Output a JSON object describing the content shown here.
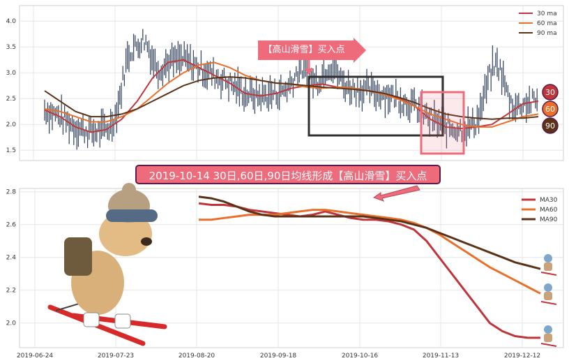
{
  "banner_text": "2019-10-14 30日,60日,90日均线形成【高山滑雪】买入点",
  "callout_text": "【高山滑雪】买入点",
  "badges": [
    "30",
    "60",
    "90"
  ],
  "colors": {
    "ma30": "#c0353a",
    "ma60": "#e8702a",
    "ma90": "#5a3218",
    "candle": "#3a4a63",
    "accent_pink": "#ee6b7c",
    "box_dark": "#2f2f2f"
  },
  "chart_data": [
    {
      "type": "line",
      "title": "",
      "y_ticks": [
        "1.5",
        "2.0",
        "2.5",
        "3.0",
        "3.5",
        "4.0"
      ],
      "ylim": [
        1.3,
        4.3
      ],
      "grid": true,
      "legend_position": "top-right",
      "series": [
        {
          "name": "30 ma",
          "color": "#c0353a",
          "values": [
            2.28,
            2.15,
            1.95,
            1.85,
            1.9,
            2.1,
            2.45,
            2.9,
            3.2,
            3.25,
            3.1,
            2.95,
            2.8,
            2.6,
            2.55,
            2.6,
            2.7,
            2.75,
            2.78,
            2.72,
            2.7,
            2.65,
            2.6,
            2.5,
            2.35,
            2.1,
            1.95,
            1.92,
            1.95,
            2.0,
            2.2,
            2.4,
            2.45
          ]
        },
        {
          "name": "60 ma",
          "color": "#e8702a",
          "values": [
            2.3,
            2.25,
            2.15,
            2.05,
            2.05,
            2.15,
            2.3,
            2.55,
            2.8,
            3.0,
            3.15,
            3.2,
            3.1,
            2.95,
            2.85,
            2.8,
            2.78,
            2.72,
            2.7,
            2.72,
            2.7,
            2.65,
            2.58,
            2.48,
            2.35,
            2.2,
            2.1,
            2.0,
            1.95,
            1.95,
            2.05,
            2.15,
            2.2
          ]
        },
        {
          "name": "90 ma",
          "color": "#5a3218",
          "values": [
            2.65,
            2.45,
            2.25,
            2.15,
            2.15,
            2.2,
            2.3,
            2.45,
            2.6,
            2.75,
            2.85,
            2.9,
            2.92,
            2.9,
            2.85,
            2.8,
            2.78,
            2.75,
            2.72,
            2.7,
            2.68,
            2.65,
            2.6,
            2.52,
            2.42,
            2.3,
            2.2,
            2.15,
            2.12,
            2.1,
            2.12,
            2.12,
            2.15
          ]
        }
      ],
      "annotations": [
        {
          "type": "box",
          "label": "highlight",
          "x_range": [
            0.52,
            0.77
          ],
          "y_range": [
            1.75,
            2.95
          ]
        },
        {
          "type": "box",
          "label": "pink",
          "x_range": [
            0.75,
            0.82
          ],
          "y_range": [
            1.4,
            2.62
          ]
        }
      ]
    },
    {
      "type": "line",
      "title": "",
      "x_ticks": [
        "2019-06-24",
        "2019-07-23",
        "2019-08-20",
        "2019-09-18",
        "2019-10-16",
        "2019-11-13",
        "2019-12-12"
      ],
      "y_ticks": [
        "2.0",
        "2.2",
        "2.4",
        "2.6",
        "2.8"
      ],
      "ylim": [
        1.85,
        2.82
      ],
      "grid": true,
      "legend_position": "top-right",
      "series": [
        {
          "name": "MA30",
          "color": "#c0353a",
          "values": [
            2.73,
            2.72,
            2.72,
            2.71,
            2.69,
            2.68,
            2.67,
            2.66,
            2.65,
            2.66,
            2.68,
            2.66,
            2.64,
            2.63,
            2.63,
            2.62,
            2.6,
            2.57,
            2.5,
            2.4,
            2.3,
            2.2,
            2.1,
            2.0,
            1.95,
            1.92,
            1.91,
            1.91
          ]
        },
        {
          "name": "MA60",
          "color": "#e8702a",
          "values": [
            2.63,
            2.63,
            2.64,
            2.65,
            2.66,
            2.66,
            2.66,
            2.67,
            2.68,
            2.69,
            2.69,
            2.68,
            2.67,
            2.66,
            2.65,
            2.64,
            2.63,
            2.61,
            2.58,
            2.54,
            2.49,
            2.44,
            2.39,
            2.34,
            2.3,
            2.26,
            2.22,
            2.18
          ]
        },
        {
          "name": "MA90",
          "color": "#5a3218",
          "values": [
            2.77,
            2.76,
            2.74,
            2.71,
            2.68,
            2.66,
            2.65,
            2.65,
            2.65,
            2.65,
            2.65,
            2.65,
            2.65,
            2.65,
            2.64,
            2.63,
            2.62,
            2.6,
            2.58,
            2.55,
            2.52,
            2.49,
            2.46,
            2.43,
            2.4,
            2.37,
            2.35,
            2.33
          ]
        }
      ]
    }
  ]
}
